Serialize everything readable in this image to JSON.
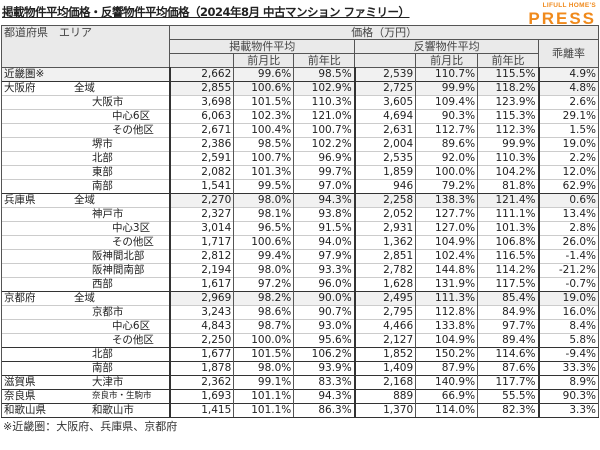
{
  "title": "掲載物件平均価格・反響物件平均価格（2024年8月 中古マンション ファミリー）",
  "logo": {
    "small": "LIFULL HOME'S",
    "big": "PRESS",
    "color": "#f08a1c"
  },
  "header": {
    "region": "都道府県　エリア",
    "price": "価格（万円）",
    "listed": "掲載物件平均",
    "response": "反響物件平均",
    "mom": "前月比",
    "yoy": "前年比",
    "gap": "乖離率"
  },
  "rows": [
    {
      "pref": "近畿圏※",
      "area": "",
      "indent": 0,
      "v": [
        "2,662",
        "99.6%",
        "98.5%",
        "2,539",
        "110.7%",
        "115.5%",
        "4.9%"
      ]
    },
    {
      "pref": "大阪府",
      "area": "全域",
      "indent": 0,
      "v": [
        "2,855",
        "100.6%",
        "102.9%",
        "2,725",
        "99.9%",
        "118.2%",
        "4.8%"
      ]
    },
    {
      "pref": "",
      "area": "大阪市",
      "indent": 1,
      "v": [
        "3,698",
        "101.5%",
        "110.3%",
        "3,605",
        "109.4%",
        "123.9%",
        "2.6%"
      ]
    },
    {
      "pref": "",
      "area": "中心6区",
      "indent": 2,
      "v": [
        "6,063",
        "102.3%",
        "121.0%",
        "4,694",
        "90.3%",
        "115.3%",
        "29.1%"
      ]
    },
    {
      "pref": "",
      "area": "その他区",
      "indent": 2,
      "v": [
        "2,671",
        "100.4%",
        "100.7%",
        "2,631",
        "112.7%",
        "112.3%",
        "1.5%"
      ]
    },
    {
      "pref": "",
      "area": "堺市",
      "indent": 1,
      "v": [
        "2,386",
        "98.5%",
        "102.2%",
        "2,004",
        "89.6%",
        "99.9%",
        "19.0%"
      ]
    },
    {
      "pref": "",
      "area": "北部",
      "indent": 1,
      "v": [
        "2,591",
        "100.7%",
        "96.9%",
        "2,535",
        "92.0%",
        "110.3%",
        "2.2%"
      ]
    },
    {
      "pref": "",
      "area": "東部",
      "indent": 1,
      "v": [
        "2,082",
        "101.3%",
        "99.7%",
        "1,859",
        "100.0%",
        "104.2%",
        "12.0%"
      ]
    },
    {
      "pref": "",
      "area": "南部",
      "indent": 1,
      "v": [
        "1,541",
        "99.5%",
        "97.0%",
        "946",
        "79.2%",
        "81.8%",
        "62.9%"
      ]
    },
    {
      "pref": "兵庫県",
      "area": "全域",
      "indent": 0,
      "v": [
        "2,270",
        "98.0%",
        "94.3%",
        "2,258",
        "138.3%",
        "121.4%",
        "0.6%"
      ]
    },
    {
      "pref": "",
      "area": "神戸市",
      "indent": 1,
      "v": [
        "2,327",
        "98.1%",
        "93.8%",
        "2,052",
        "127.7%",
        "111.1%",
        "13.4%"
      ]
    },
    {
      "pref": "",
      "area": "中心3区",
      "indent": 2,
      "v": [
        "3,014",
        "96.5%",
        "91.5%",
        "2,931",
        "127.0%",
        "101.3%",
        "2.8%"
      ]
    },
    {
      "pref": "",
      "area": "その他区",
      "indent": 2,
      "v": [
        "1,717",
        "100.6%",
        "94.0%",
        "1,362",
        "104.9%",
        "106.8%",
        "26.0%"
      ]
    },
    {
      "pref": "",
      "area": "阪神間北部",
      "indent": 1,
      "v": [
        "2,812",
        "99.4%",
        "97.9%",
        "2,851",
        "102.4%",
        "116.5%",
        "-1.4%"
      ]
    },
    {
      "pref": "",
      "area": "阪神間南部",
      "indent": 1,
      "v": [
        "2,194",
        "98.0%",
        "93.3%",
        "2,782",
        "144.8%",
        "114.2%",
        "-21.2%"
      ]
    },
    {
      "pref": "",
      "area": "西部",
      "indent": 1,
      "v": [
        "1,617",
        "97.2%",
        "96.0%",
        "1,628",
        "131.9%",
        "117.5%",
        "-0.7%"
      ]
    },
    {
      "pref": "京都府",
      "area": "全域",
      "indent": 0,
      "v": [
        "2,969",
        "98.2%",
        "90.0%",
        "2,495",
        "111.3%",
        "85.4%",
        "19.0%"
      ]
    },
    {
      "pref": "",
      "area": "京都市",
      "indent": 1,
      "v": [
        "3,243",
        "98.6%",
        "90.7%",
        "2,795",
        "112.8%",
        "84.9%",
        "16.0%"
      ]
    },
    {
      "pref": "",
      "area": "中心6区",
      "indent": 2,
      "v": [
        "4,843",
        "98.7%",
        "93.0%",
        "4,466",
        "133.8%",
        "97.7%",
        "8.4%"
      ]
    },
    {
      "pref": "",
      "area": "その他区",
      "indent": 2,
      "v": [
        "2,250",
        "100.0%",
        "95.6%",
        "2,127",
        "104.9%",
        "89.4%",
        "5.8%"
      ]
    },
    {
      "pref": "",
      "area": "北部",
      "indent": 1,
      "v": [
        "1,677",
        "101.5%",
        "106.2%",
        "1,852",
        "150.2%",
        "114.6%",
        "-9.4%"
      ]
    },
    {
      "pref": "",
      "area": "南部",
      "indent": 1,
      "v": [
        "1,878",
        "98.0%",
        "93.9%",
        "1,409",
        "87.9%",
        "87.6%",
        "33.3%"
      ]
    },
    {
      "pref": "滋賀県",
      "area": "大津市",
      "indent": 1,
      "v": [
        "2,362",
        "99.1%",
        "83.3%",
        "2,168",
        "140.9%",
        "117.7%",
        "8.9%"
      ]
    },
    {
      "pref": "奈良県",
      "area": "奈良市・生駒市",
      "indent": 1,
      "small": true,
      "v": [
        "1,693",
        "101.1%",
        "94.3%",
        "889",
        "66.9%",
        "55.5%",
        "90.3%"
      ]
    },
    {
      "pref": "和歌山県",
      "area": "和歌山市",
      "indent": 1,
      "v": [
        "1,415",
        "101.1%",
        "86.3%",
        "1,370",
        "114.0%",
        "82.3%",
        "3.3%"
      ]
    }
  ],
  "footnote": "※近畿圏：大阪府、兵庫県、京都府"
}
